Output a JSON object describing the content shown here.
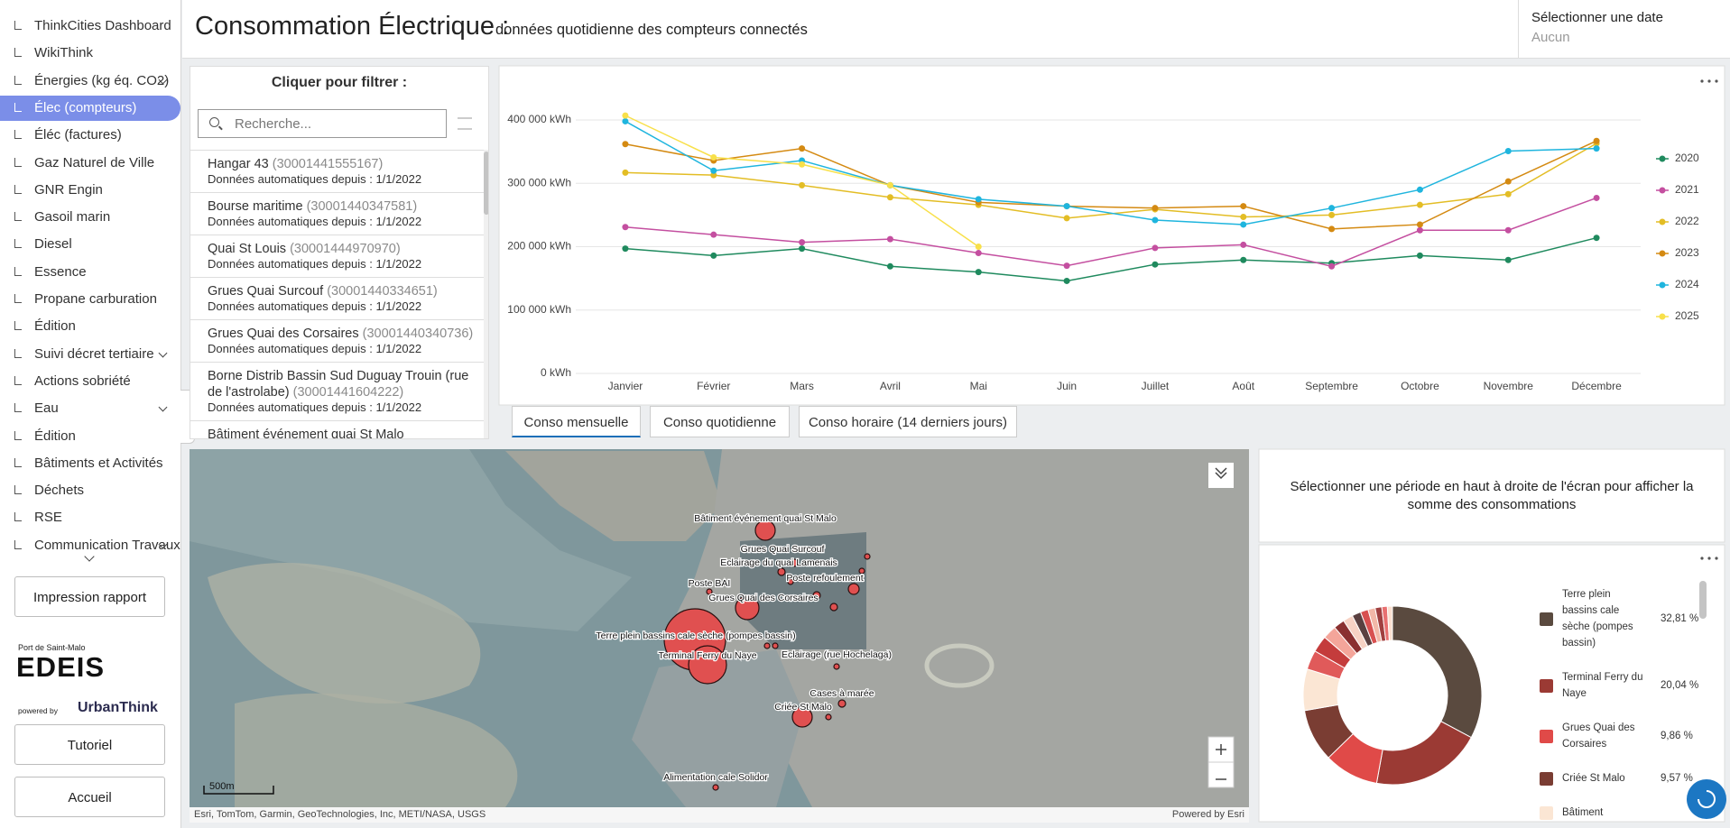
{
  "sidebar": {
    "items": [
      {
        "label": "ThinkCities Dashboard"
      },
      {
        "label": "WikiThink"
      },
      {
        "label": "Énergies (kg éq. CO2)",
        "expandable": true
      },
      {
        "label": "Élec (compteurs)",
        "selected": true
      },
      {
        "label": "Éléc (factures)"
      },
      {
        "label": "Gaz Naturel de Ville"
      },
      {
        "label": "GNR Engin"
      },
      {
        "label": "Gasoil marin"
      },
      {
        "label": "Diesel"
      },
      {
        "label": "Essence"
      },
      {
        "label": "Propane carburation"
      },
      {
        "label": "Édition"
      },
      {
        "label": "Suivi décret tertiaire",
        "expandable": true
      },
      {
        "label": "Actions sobriété"
      },
      {
        "label": "Eau",
        "expandable": true
      },
      {
        "label": "Édition"
      },
      {
        "label": "Bâtiments et Activités"
      },
      {
        "label": "Déchets"
      },
      {
        "label": "RSE"
      },
      {
        "label": "Communication Travaux",
        "expandable": true
      }
    ],
    "buttons": {
      "report": "Impression rapport",
      "tutorial": "Tutoriel",
      "home": "Accueil"
    },
    "logo": {
      "port": "Port de Saint-Malo",
      "brand": "EDEIS",
      "powered": "powered by",
      "partner": "UrbanThink"
    }
  },
  "header": {
    "title": "Consommation Électrique :",
    "subtitle": "données quotidienne des compteurs connectés",
    "date_label": "Sélectionner une date",
    "date_value": "Aucun"
  },
  "filter": {
    "title": "Cliquer pour filtrer :",
    "search_placeholder": "Recherche...",
    "items": [
      {
        "name": "Hangar 43",
        "id": "(30001441555167)",
        "subtitle": "Données automatiques depuis : 1/1/2022"
      },
      {
        "name": "Bourse maritime",
        "id": "(30001440347581)",
        "subtitle": "Données automatiques depuis : 1/1/2022"
      },
      {
        "name": "Quai St Louis",
        "id": "(30001444970970)",
        "subtitle": "Données automatiques depuis : 1/1/2022"
      },
      {
        "name": "Grues Quai Surcouf",
        "id": "(30001440334651)",
        "subtitle": "Données automatiques depuis : 1/1/2022"
      },
      {
        "name": "Grues Quai des Corsaires",
        "id": "(30001440340736)",
        "subtitle": "Données automatiques depuis : 1/1/2022"
      },
      {
        "name": "Borne Distrib Bassin Sud Duguay Trouin (rue de l'astrolabe)",
        "id": "(30001441604222)",
        "subtitle": "Données automatiques depuis : 1/1/2022"
      },
      {
        "name": "Bâtiment événement quai St Malo"
      }
    ]
  },
  "tabs": [
    {
      "label": "Conso mensuelle",
      "active": true
    },
    {
      "label": "Conso quotidienne"
    },
    {
      "label": "Conso horaire (14 derniers jours)"
    }
  ],
  "map": {
    "labels": [
      "Bâtiment événement quai St Malo",
      "Grues Quai Surcouf",
      "Eclairage du quai Lamenais",
      "Poste BAI",
      "Poste refoulement",
      "Grues Quai des Corsaires",
      "Terre plein bassins cale sèche (pompes bassin)",
      "Terminal Ferry du Naye",
      "Eclairage (rue Hochelaga)",
      "Cases à marée",
      "Criée St Malo",
      "Alimentation cale Solidor"
    ],
    "scale": "500m",
    "attribution": "Esri, TomTom, Garmin, GeoTechnologies, Inc, METI/NASA, USGS",
    "powered": "Powered by Esri"
  },
  "summary": {
    "text": "Sélectionner une période en haut à droite de l'écran pour afficher la somme des consommations"
  },
  "chart_data": [
    {
      "type": "line",
      "categories": [
        "Janvier",
        "Février",
        "Mars",
        "Avril",
        "Mai",
        "Juin",
        "Juillet",
        "Août",
        "Septembre",
        "Octobre",
        "Novembre",
        "Décembre"
      ],
      "ylim": [
        0,
        420000
      ],
      "yticks": [
        {
          "value": 0,
          "label": "0 kWh"
        },
        {
          "value": 100000,
          "label": "100 000 kWh"
        },
        {
          "value": 200000,
          "label": "200 000 kWh"
        },
        {
          "value": 300000,
          "label": "300 000 kWh"
        },
        {
          "value": 400000,
          "label": "400 000 kWh"
        }
      ],
      "grid": true,
      "legend": "right",
      "series": [
        {
          "name": "2020",
          "color": "#1f8a5e",
          "values": [
            197000,
            186000,
            197000,
            169000,
            160000,
            146000,
            172000,
            179000,
            174000,
            186000,
            179000,
            214000
          ]
        },
        {
          "name": "2021",
          "color": "#c44fa0",
          "values": [
            231000,
            219000,
            207000,
            212000,
            190000,
            170000,
            198000,
            203000,
            169000,
            226000,
            226000,
            277000
          ]
        },
        {
          "name": "2022",
          "color": "#e3bd25",
          "values": [
            317000,
            313000,
            297000,
            278000,
            266000,
            245000,
            259000,
            247000,
            250000,
            266000,
            283000,
            363000
          ]
        },
        {
          "name": "2023",
          "color": "#d48a12",
          "values": [
            362000,
            336000,
            355000,
            297000,
            270000,
            264000,
            261000,
            264000,
            228000,
            235000,
            303000,
            367000
          ]
        },
        {
          "name": "2024",
          "color": "#1fb5de",
          "values": [
            398000,
            320000,
            336000,
            297000,
            275000,
            264000,
            242000,
            235000,
            261000,
            290000,
            351000,
            355000
          ]
        },
        {
          "name": "2025",
          "color": "#f8e04a",
          "values": [
            407000,
            341000,
            330000,
            297000,
            200000,
            null,
            null,
            null,
            null,
            null,
            null,
            null
          ]
        }
      ]
    },
    {
      "type": "pie",
      "inner_radius": true,
      "categories": [
        "Terre plein bassins cale sèche (pompes bassin)",
        "Terminal Ferry du Naye",
        "Grues Quai des Corsaires",
        "Criée St Malo",
        "Bâtiment",
        null,
        null,
        null,
        null,
        null,
        null,
        null,
        null,
        null,
        null,
        null
      ],
      "values": [
        32.81,
        20.04,
        9.86,
        9.57,
        7.5,
        3.5,
        3.0,
        2.5,
        2.0,
        1.8,
        1.6,
        1.4,
        1.3,
        1.2,
        1.0,
        0.92
      ],
      "value_labels": [
        "32,81 %",
        "20,04 %",
        "9,86 %",
        "9,57 %",
        null,
        null,
        null,
        null,
        null,
        null,
        null,
        null,
        null,
        null,
        null,
        null
      ],
      "colors": [
        "#5a4a3f",
        "#9b3a34",
        "#e04a48",
        "#7a3d33",
        "#fbe6d4",
        "#e05a5a",
        "#c43c3c",
        "#f4a59a",
        "#8a3030",
        "#f7d2c4",
        "#5a4040",
        "#d85050",
        "#f2b8a8",
        "#a04040",
        "#e87070",
        "#fbe0d0"
      ]
    }
  ]
}
